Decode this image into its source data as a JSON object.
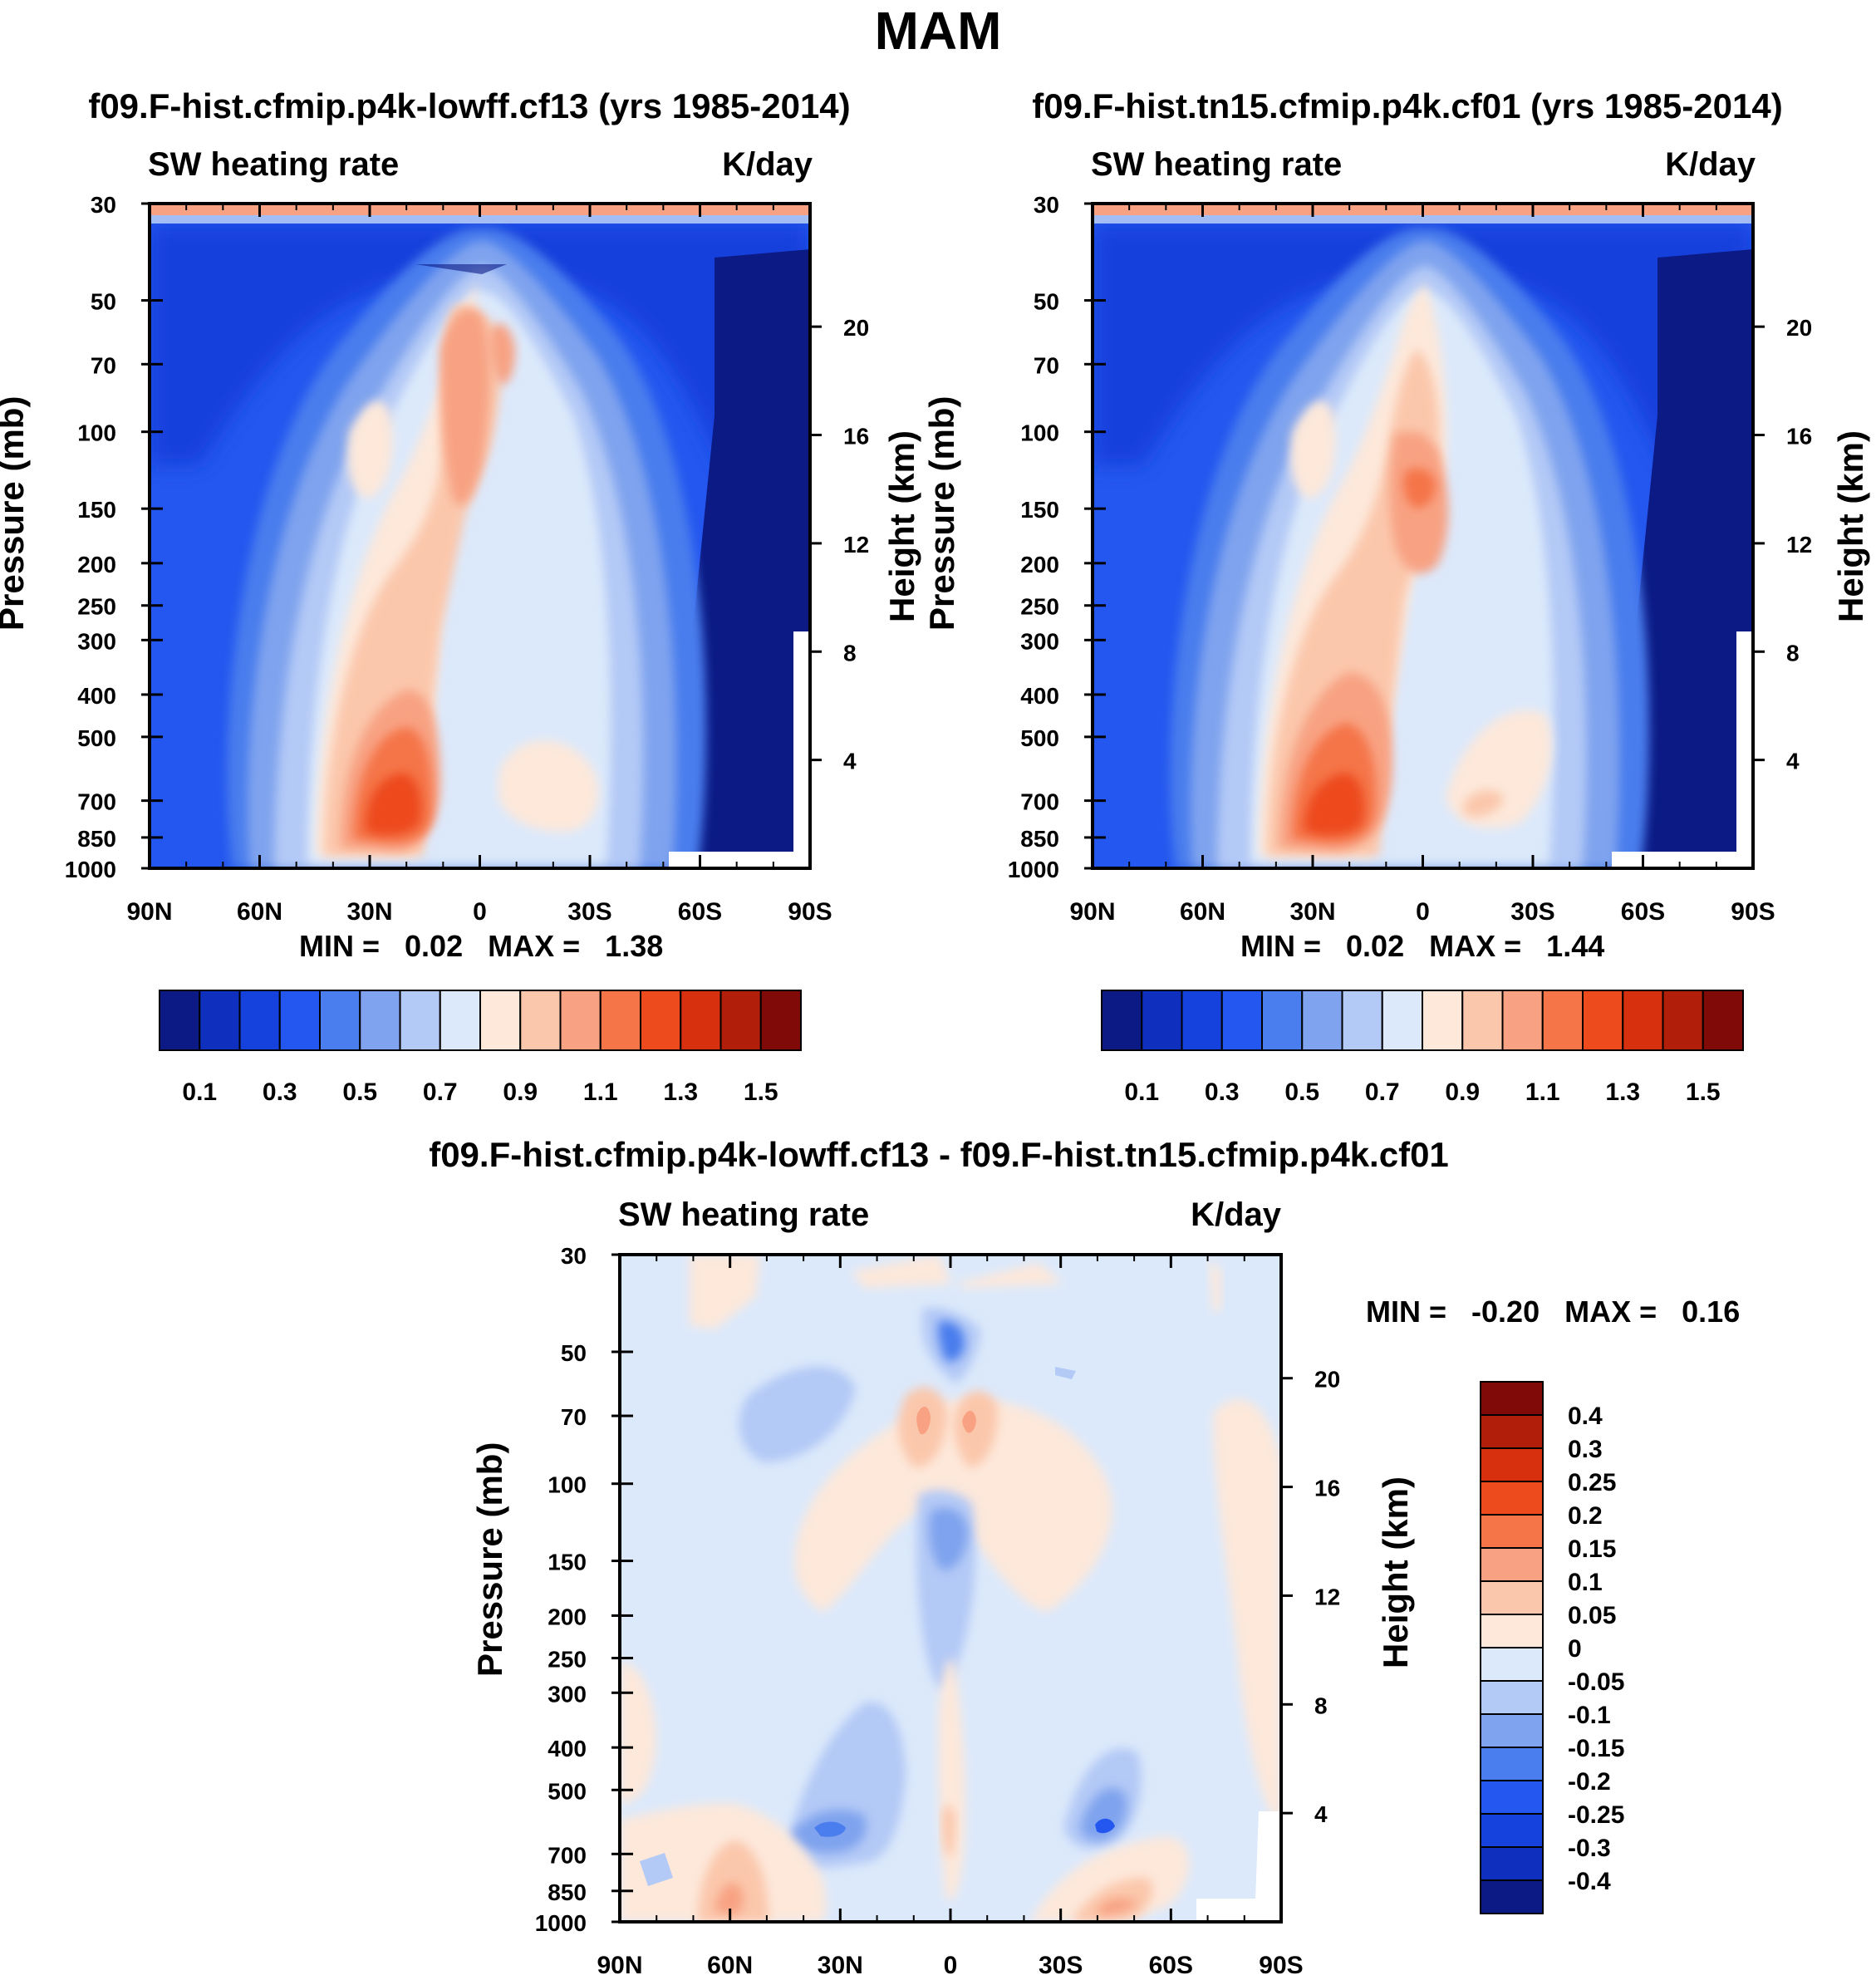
{
  "main_title": "MAM",
  "colors": {
    "abs_scale": [
      "#0b1a85",
      "#0f2fbf",
      "#1541dc",
      "#2457ef",
      "#4a7ded",
      "#7fa3ee",
      "#b3c9f6",
      "#dce9fb",
      "#fde8da",
      "#fbc7ac",
      "#f8a283",
      "#f57548",
      "#ed4a1d",
      "#d7300f",
      "#b11f0b",
      "#7f0a07"
    ],
    "diff_scale": [
      "#0b1a85",
      "#0f2fbf",
      "#1541dc",
      "#2457ef",
      "#4a7ded",
      "#7fa3ee",
      "#b3c9f6",
      "#dce9fb",
      "#fde8da",
      "#fbc7ac",
      "#f8a283",
      "#f57548",
      "#ed4a1d",
      "#d7300f",
      "#7f0a07"
    ]
  },
  "panels": {
    "left": {
      "title": "f09.F-hist.cfmip.p4k-lowff.cf13 (yrs 1985-2014)",
      "variable": "SW heating rate",
      "units": "K/day",
      "min_label": "MIN =",
      "min_value": "0.02",
      "max_label": "MAX =",
      "max_value": "1.38"
    },
    "right": {
      "title": "f09.F-hist.tn15.cfmip.p4k.cf01 (yrs 1985-2014)",
      "variable": "SW heating rate",
      "units": "K/day",
      "min_label": "MIN =",
      "min_value": "0.02",
      "max_label": "MAX =",
      "max_value": "1.44"
    },
    "diff": {
      "title": "f09.F-hist.cfmip.p4k-lowff.cf13 - f09.F-hist.tn15.cfmip.p4k.cf01",
      "variable": "SW heating rate",
      "units": "K/day",
      "min_label": "MIN =",
      "min_value": "-0.20",
      "max_label": "MAX =",
      "max_value": "0.16"
    }
  },
  "chart_data": [
    {
      "type": "heatmap",
      "title": "f09.F-hist.cfmip.p4k-lowff.cf13 (yrs 1985-2014)",
      "xlabel": "",
      "ylabel": "Pressure (mb)",
      "ylabel_right": "Height (km)",
      "x_ticks": [
        "90N",
        "60N",
        "30N",
        "0",
        "30S",
        "60S",
        "90S"
      ],
      "y_ticks": [
        30,
        50,
        70,
        100,
        150,
        200,
        250,
        300,
        400,
        500,
        700,
        850,
        1000
      ],
      "y_ticks_right": [
        20,
        16,
        12,
        8,
        4
      ],
      "y_scale": "log",
      "colorbar_labels": [
        "0.1",
        "0.3",
        "0.5",
        "0.7",
        "0.9",
        "1.1",
        "1.3",
        "1.5"
      ],
      "min": 0.02,
      "max": 1.38
    },
    {
      "type": "heatmap",
      "title": "f09.F-hist.tn15.cfmip.p4k.cf01 (yrs 1985-2014)",
      "xlabel": "",
      "ylabel": "Pressure (mb)",
      "ylabel_right": "Height (km)",
      "x_ticks": [
        "90N",
        "60N",
        "30N",
        "0",
        "30S",
        "60S",
        "90S"
      ],
      "y_ticks": [
        30,
        50,
        70,
        100,
        150,
        200,
        250,
        300,
        400,
        500,
        700,
        850,
        1000
      ],
      "y_ticks_right": [
        20,
        16,
        12,
        8,
        4
      ],
      "y_scale": "log",
      "colorbar_labels": [
        "0.1",
        "0.3",
        "0.5",
        "0.7",
        "0.9",
        "1.1",
        "1.3",
        "1.5"
      ],
      "min": 0.02,
      "max": 1.44
    },
    {
      "type": "heatmap",
      "title": "f09.F-hist.cfmip.p4k-lowff.cf13 - f09.F-hist.tn15.cfmip.p4k.cf01",
      "xlabel": "",
      "ylabel": "Pressure (mb)",
      "ylabel_right": "Height (km)",
      "x_ticks": [
        "90N",
        "60N",
        "30N",
        "0",
        "30S",
        "60S",
        "90S"
      ],
      "y_ticks": [
        30,
        50,
        70,
        100,
        150,
        200,
        250,
        300,
        400,
        500,
        700,
        850,
        1000
      ],
      "y_ticks_right": [
        20,
        16,
        12,
        8,
        4
      ],
      "y_scale": "log",
      "colorbar_labels": [
        "0.4",
        "0.3",
        "0.25",
        "0.2",
        "0.15",
        "0.1",
        "0.05",
        "0",
        "-0.05",
        "-0.1",
        "-0.15",
        "-0.2",
        "-0.25",
        "-0.3",
        "-0.4"
      ],
      "min": -0.2,
      "max": 0.16
    }
  ]
}
